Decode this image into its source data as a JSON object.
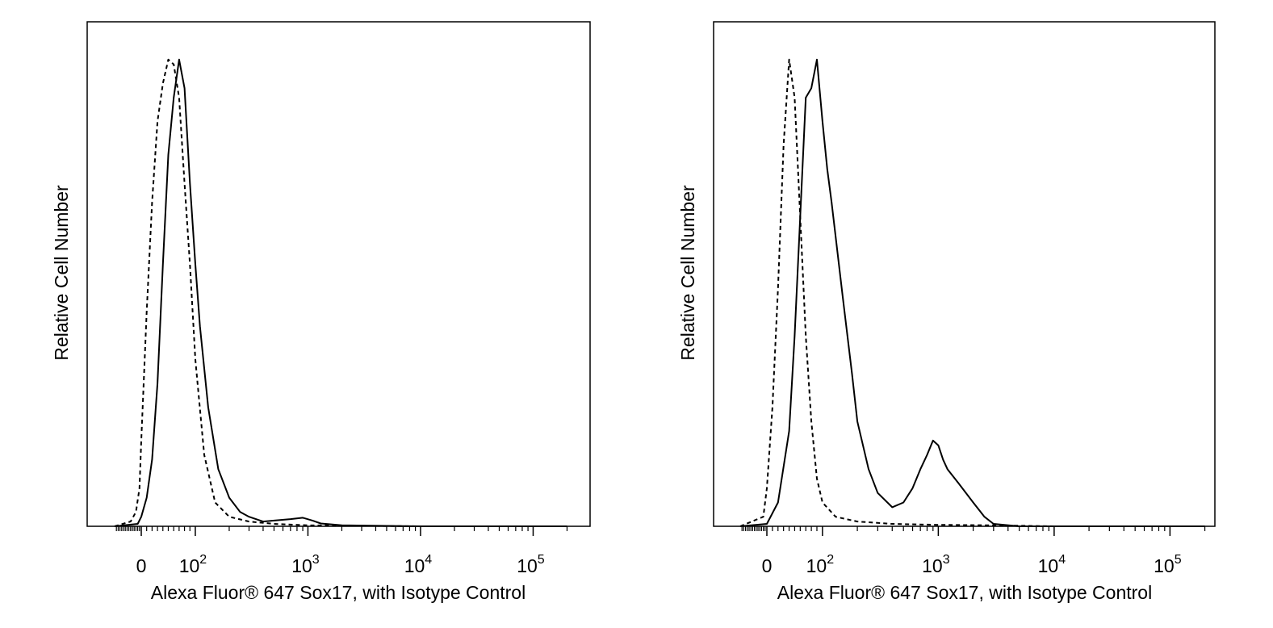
{
  "chart_data": [
    {
      "type": "line",
      "subtype": "flow-cytometry-histogram",
      "xlabel": "Alexa Fluor® 647 Sox17, with Isotype Control",
      "ylabel": "Relative Cell Number",
      "x_scale": "biexponential",
      "xlim": [
        -150,
        200000
      ],
      "ylim": [
        0,
        100
      ],
      "x_ticks": [
        {
          "value": 0,
          "base": "0",
          "exp": ""
        },
        {
          "value": 100,
          "base": "10",
          "exp": "2"
        },
        {
          "value": 1000,
          "base": "10",
          "exp": "3"
        },
        {
          "value": 10000,
          "base": "10",
          "exp": "4"
        },
        {
          "value": 100000,
          "base": "10",
          "exp": "5"
        }
      ],
      "grid": false,
      "legend": "none",
      "series": [
        {
          "style": "dashed",
          "x": [
            -150,
            -60,
            -30,
            -10,
            0,
            10,
            20,
            30,
            40,
            50,
            60,
            70,
            80,
            90,
            100,
            120,
            150,
            200,
            300,
            500,
            1000,
            10000,
            200000
          ],
          "y": [
            0,
            1,
            3,
            8,
            18,
            45,
            68,
            85,
            93,
            98,
            97,
            90,
            72,
            55,
            35,
            15,
            5,
            2,
            1,
            0.5,
            0.2,
            0,
            0
          ]
        },
        {
          "style": "solid",
          "x": [
            -150,
            -20,
            0,
            10,
            20,
            30,
            40,
            50,
            60,
            70,
            80,
            90,
            100,
            110,
            130,
            160,
            200,
            250,
            300,
            400,
            500,
            700,
            900,
            1100,
            1300,
            2000,
            10000,
            200000
          ],
          "y": [
            0,
            0.5,
            2,
            6,
            14,
            30,
            55,
            78,
            90,
            98,
            92,
            72,
            55,
            42,
            25,
            12,
            6,
            3,
            2,
            1,
            1.2,
            1.5,
            1.8,
            1.2,
            0.6,
            0.2,
            0,
            0
          ]
        }
      ]
    },
    {
      "type": "line",
      "subtype": "flow-cytometry-histogram",
      "xlabel": "Alexa Fluor® 647 Sox17, with Isotype Control",
      "ylabel": "Relative Cell Number",
      "x_scale": "biexponential",
      "xlim": [
        -150,
        200000
      ],
      "ylim": [
        0,
        100
      ],
      "x_ticks": [
        {
          "value": 0,
          "base": "0",
          "exp": ""
        },
        {
          "value": 100,
          "base": "10",
          "exp": "2"
        },
        {
          "value": 1000,
          "base": "10",
          "exp": "3"
        },
        {
          "value": 10000,
          "base": "10",
          "exp": "4"
        },
        {
          "value": 100000,
          "base": "10",
          "exp": "5"
        }
      ],
      "grid": false,
      "legend": "none",
      "series": [
        {
          "style": "dashed",
          "x": [
            -150,
            -20,
            0,
            10,
            20,
            30,
            40,
            50,
            60,
            70,
            80,
            90,
            100,
            130,
            200,
            400,
            1000,
            3000,
            10000,
            200000
          ],
          "y": [
            0,
            2,
            8,
            25,
            50,
            80,
            98,
            90,
            65,
            40,
            22,
            10,
            5,
            2,
            1,
            0.5,
            0.3,
            0.2,
            0,
            0
          ]
        },
        {
          "style": "solid",
          "x": [
            -150,
            0,
            20,
            40,
            50,
            60,
            70,
            80,
            90,
            100,
            110,
            120,
            150,
            180,
            200,
            250,
            300,
            400,
            500,
            600,
            700,
            800,
            900,
            1000,
            1100,
            1200,
            1500,
            2000,
            2500,
            3000,
            5000,
            200000
          ],
          "y": [
            0,
            0.5,
            5,
            20,
            40,
            65,
            90,
            92,
            98,
            85,
            75,
            68,
            48,
            32,
            22,
            12,
            7,
            4,
            5,
            8,
            12,
            15,
            18,
            17,
            14,
            12,
            9,
            5,
            2,
            0.5,
            0,
            0
          ]
        }
      ]
    }
  ]
}
